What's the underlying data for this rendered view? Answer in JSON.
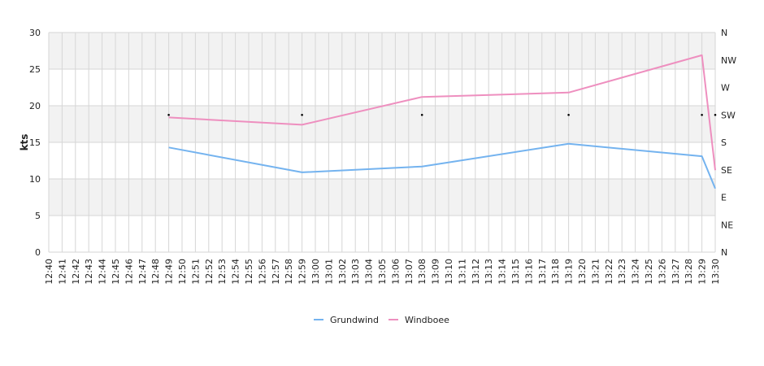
{
  "chart_data": {
    "type": "line",
    "ylabel": "kts",
    "ylim": [
      0,
      30
    ],
    "yticks": [
      "0",
      "5",
      "10",
      "15",
      "20",
      "25",
      "30"
    ],
    "direction_ticks": [
      "N",
      "NE",
      "E",
      "SE",
      "S",
      "SW",
      "W",
      "NW",
      "N"
    ],
    "x_labels": [
      "12:40",
      "12:41",
      "12:42",
      "12:43",
      "12:44",
      "12:45",
      "12:46",
      "12:47",
      "12:48",
      "12:49",
      "12:50",
      "12:51",
      "12:52",
      "12:53",
      "12:54",
      "12:55",
      "12:56",
      "12:57",
      "12:58",
      "12:59",
      "13:00",
      "13:01",
      "13:02",
      "13:03",
      "13:04",
      "13:05",
      "13:06",
      "13:07",
      "13:08",
      "13:09",
      "13:10",
      "13:11",
      "13:12",
      "13:13",
      "13:14",
      "13:15",
      "13:16",
      "13:17",
      "13:18",
      "13:19",
      "13:20",
      "13:21",
      "13:22",
      "13:23",
      "13:24",
      "13:25",
      "13:26",
      "13:27",
      "13:28",
      "13:29",
      "13:30"
    ],
    "grid": true,
    "legend_position": "bottom-center",
    "series": [
      {
        "name": "Grundwind",
        "color": "#74b3ef",
        "points": [
          {
            "x": "12:49",
            "y": 14.3
          },
          {
            "x": "12:59",
            "y": 10.9
          },
          {
            "x": "13:08",
            "y": 11.7
          },
          {
            "x": "13:19",
            "y": 14.8
          },
          {
            "x": "13:29",
            "y": 13.1
          },
          {
            "x": "13:30",
            "y": 8.7
          }
        ]
      },
      {
        "name": "Windboee",
        "color": "#ee8fbf",
        "points": [
          {
            "x": "12:49",
            "y": 18.4
          },
          {
            "x": "12:59",
            "y": 17.4
          },
          {
            "x": "13:08",
            "y": 21.2
          },
          {
            "x": "13:19",
            "y": 21.8
          },
          {
            "x": "13:29",
            "y": 26.9
          },
          {
            "x": "13:30",
            "y": 11.2
          }
        ]
      }
    ],
    "direction_markers": [
      {
        "x": "12:49",
        "direction": "SW"
      },
      {
        "x": "12:59",
        "direction": "SW"
      },
      {
        "x": "13:08",
        "direction": "SW"
      },
      {
        "x": "13:19",
        "direction": "SW"
      },
      {
        "x": "13:29",
        "direction": "SW"
      },
      {
        "x": "13:30",
        "direction": "SW"
      }
    ]
  }
}
